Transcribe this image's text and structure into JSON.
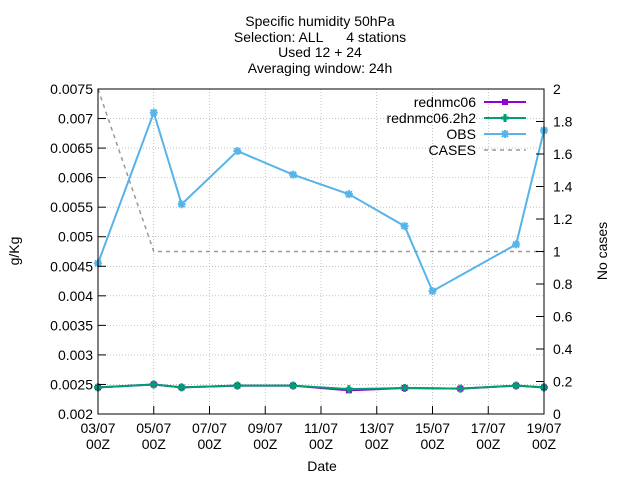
{
  "chart_data": {
    "type": "line",
    "title": [
      "Specific humidity 50hPa",
      "Selection: ALL      4 stations",
      "Used 12 + 24",
      "Averaging window: 24h"
    ],
    "xlabel": "Date",
    "ylabel": "g/Kg",
    "y2label": "No cases",
    "x_ticks": [
      [
        "03/07",
        "00Z"
      ],
      [
        "05/07",
        "00Z"
      ],
      [
        "07/07",
        "00Z"
      ],
      [
        "09/07",
        "00Z"
      ],
      [
        "11/07",
        "00Z"
      ],
      [
        "13/07",
        "00Z"
      ],
      [
        "15/07",
        "00Z"
      ],
      [
        "17/07",
        "00Z"
      ],
      [
        "19/07",
        "00Z"
      ]
    ],
    "x_range_days": [
      0,
      16
    ],
    "ylim": [
      0.002,
      0.0075
    ],
    "y_ticks": [
      "0.002",
      "0.0025",
      "0.003",
      "0.0035",
      "0.004",
      "0.0045",
      "0.005",
      "0.0055",
      "0.006",
      "0.0065",
      "0.007",
      "0.0075"
    ],
    "y2lim": [
      0,
      2
    ],
    "y2_ticks": [
      "0",
      "0.2",
      "0.4",
      "0.6",
      "0.8",
      "1",
      "1.2",
      "1.4",
      "1.6",
      "1.8",
      "2"
    ],
    "grid": true,
    "legend_position": "top-right",
    "series": [
      {
        "name": "rednmc06",
        "color": "#9400d3",
        "marker": "square",
        "axis": "y1",
        "x": [
          0,
          2,
          3,
          5,
          7,
          9,
          11,
          13,
          15,
          16
        ],
        "y": [
          0.00245,
          0.0025,
          0.00245,
          0.00248,
          0.00248,
          0.0024,
          0.00244,
          0.00243,
          0.00248,
          0.00245
        ]
      },
      {
        "name": "rednmc06.2h2",
        "color": "#009e73",
        "marker": "cross",
        "axis": "y1",
        "x": [
          0,
          2,
          3,
          5,
          7,
          9,
          11,
          13,
          15,
          16
        ],
        "y": [
          0.00245,
          0.0025,
          0.00245,
          0.00248,
          0.00248,
          0.00242,
          0.00244,
          0.00243,
          0.00248,
          0.00245
        ]
      },
      {
        "name": "OBS",
        "color": "#56b4e9",
        "marker": "star",
        "axis": "y1",
        "x": [
          0,
          2,
          3,
          5,
          7,
          9,
          11,
          12,
          15,
          16
        ],
        "y": [
          0.00455,
          0.0071,
          0.00555,
          0.00645,
          0.00605,
          0.00572,
          0.00518,
          0.00408,
          0.00487,
          0.0068
        ]
      },
      {
        "name": "CASES",
        "color": "#999999",
        "marker": "none",
        "dashed": true,
        "axis": "y2",
        "x": [
          0,
          2,
          3,
          5,
          7,
          9,
          11,
          12,
          15,
          16
        ],
        "y": [
          2,
          1,
          1,
          1,
          1,
          1,
          1,
          1,
          1,
          1
        ]
      }
    ]
  }
}
